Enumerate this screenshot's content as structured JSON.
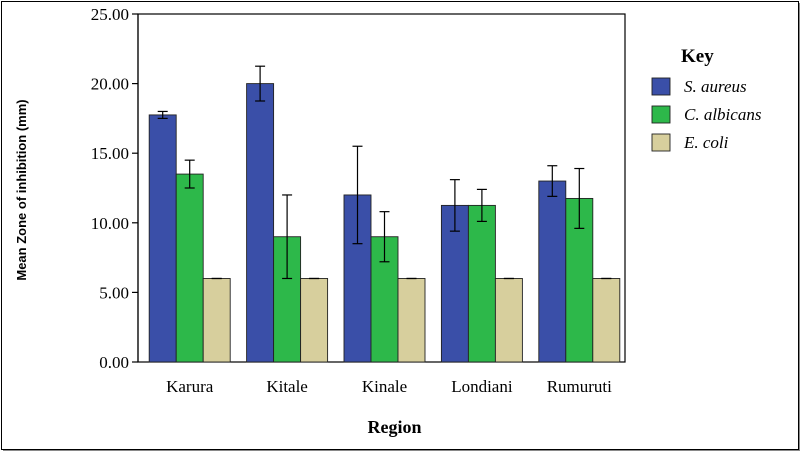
{
  "chart_data": {
    "type": "bar",
    "title": "",
    "xlabel": "Region",
    "ylabel": "Mean Zone of inhibition (mm)",
    "ylim": [
      0,
      25
    ],
    "yticks": [
      "0.00",
      "5.00",
      "10.00",
      "15.00",
      "20.00",
      "25.00"
    ],
    "categories": [
      "Karura",
      "Kitale",
      "Kinale",
      "Londiani",
      "Rumuruti"
    ],
    "legend_title": "Key",
    "legend_position": "right",
    "series": [
      {
        "name": "S. aureus",
        "color": "#3a4fa8",
        "values": [
          17.75,
          20.0,
          12.0,
          11.25,
          13.0
        ],
        "error_low": [
          17.5,
          18.75,
          8.5,
          9.4,
          11.9
        ],
        "error_high": [
          18.0,
          21.25,
          15.5,
          13.1,
          14.1
        ]
      },
      {
        "name": "C. albicans",
        "color": "#2db84a",
        "values": [
          13.5,
          9.0,
          9.0,
          11.25,
          11.75
        ],
        "error_low": [
          12.5,
          6.0,
          7.2,
          10.1,
          9.6
        ],
        "error_high": [
          14.5,
          12.0,
          10.8,
          12.4,
          13.9
        ]
      },
      {
        "name": "E. coli",
        "color": "#d7cf9d",
        "values": [
          6.0,
          6.0,
          6.0,
          6.0,
          6.0
        ],
        "error_low": [
          6.0,
          6.0,
          6.0,
          6.0,
          6.0
        ],
        "error_high": [
          6.0,
          6.0,
          6.0,
          6.0,
          6.0
        ]
      }
    ]
  }
}
